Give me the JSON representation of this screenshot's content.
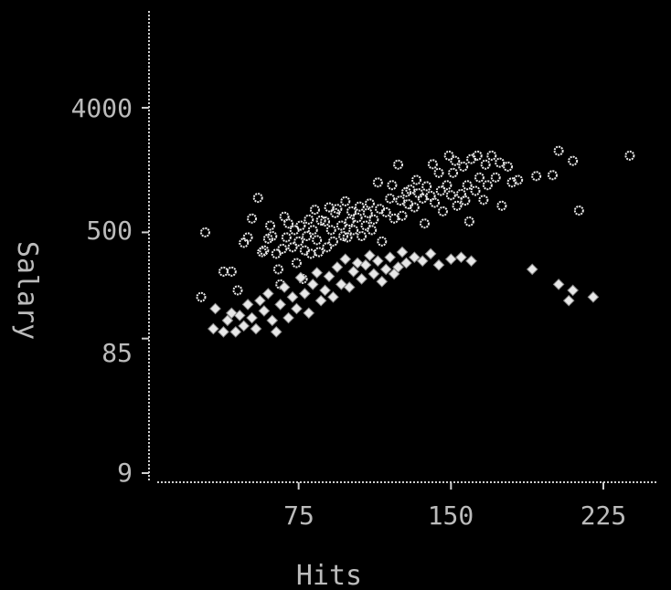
{
  "chart_data": {
    "type": "scatter",
    "title": "",
    "xlabel": "Hits",
    "ylabel": "Salary",
    "x_ticks": [
      "75",
      "150",
      "225"
    ],
    "x_tick_values": [
      75,
      150,
      225
    ],
    "y_ticks": [
      "4000",
      "500",
      "85",
      "9"
    ],
    "y_tick_values": [
      4000,
      500,
      85,
      9
    ],
    "y_scale": "log",
    "xlim": [
      0,
      250
    ],
    "ylim": [
      7,
      12000
    ],
    "grid": false,
    "colors": {
      "background": "#000000",
      "points": "#e8e8e8",
      "axis": "#cfcfcf",
      "text": "#bbbbbb"
    },
    "series": [
      {
        "marker": "open-circle",
        "points": [
          [
            29,
            500
          ],
          [
            27,
            170
          ],
          [
            38,
            260
          ],
          [
            42,
            260
          ],
          [
            45,
            190
          ],
          [
            48,
            420
          ],
          [
            50,
            460
          ],
          [
            52,
            630
          ],
          [
            55,
            890
          ],
          [
            57,
            360
          ],
          [
            58,
            370
          ],
          [
            60,
            450
          ],
          [
            61,
            560
          ],
          [
            62,
            470
          ],
          [
            64,
            350
          ],
          [
            65,
            270
          ],
          [
            66,
            210
          ],
          [
            67,
            380
          ],
          [
            68,
            650
          ],
          [
            69,
            460
          ],
          [
            70,
            580
          ],
          [
            72,
            390
          ],
          [
            73,
            520
          ],
          [
            74,
            300
          ],
          [
            75,
            430
          ],
          [
            76,
            560
          ],
          [
            77,
            230
          ],
          [
            78,
            370
          ],
          [
            79,
            470
          ],
          [
            80,
            620
          ],
          [
            81,
            350
          ],
          [
            82,
            520
          ],
          [
            83,
            730
          ],
          [
            84,
            440
          ],
          [
            85,
            360
          ],
          [
            86,
            610
          ],
          [
            88,
            600
          ],
          [
            89,
            390
          ],
          [
            90,
            760
          ],
          [
            91,
            520
          ],
          [
            92,
            430
          ],
          [
            93,
            690
          ],
          [
            94,
            740
          ],
          [
            96,
            560
          ],
          [
            97,
            470
          ],
          [
            98,
            840
          ],
          [
            99,
            460
          ],
          [
            100,
            600
          ],
          [
            101,
            710
          ],
          [
            102,
            520
          ],
          [
            104,
            640
          ],
          [
            105,
            770
          ],
          [
            106,
            470
          ],
          [
            108,
            560
          ],
          [
            109,
            690
          ],
          [
            110,
            810
          ],
          [
            111,
            520
          ],
          [
            112,
            620
          ],
          [
            114,
            1150
          ],
          [
            115,
            740
          ],
          [
            116,
            430
          ],
          [
            118,
            700
          ],
          [
            120,
            880
          ],
          [
            121,
            1100
          ],
          [
            122,
            630
          ],
          [
            124,
            1550
          ],
          [
            125,
            850
          ],
          [
            126,
            660
          ],
          [
            128,
            980
          ],
          [
            129,
            800
          ],
          [
            130,
            1020
          ],
          [
            132,
            760
          ],
          [
            133,
            1200
          ],
          [
            134,
            960
          ],
          [
            136,
            880
          ],
          [
            137,
            580
          ],
          [
            138,
            1080
          ],
          [
            140,
            920
          ],
          [
            141,
            1560
          ],
          [
            142,
            820
          ],
          [
            144,
            1350
          ],
          [
            145,
            1000
          ],
          [
            146,
            710
          ],
          [
            148,
            1100
          ],
          [
            149,
            1800
          ],
          [
            150,
            930
          ],
          [
            151,
            1350
          ],
          [
            152,
            1650
          ],
          [
            153,
            780
          ],
          [
            155,
            950
          ],
          [
            156,
            1500
          ],
          [
            157,
            850
          ],
          [
            158,
            1100
          ],
          [
            159,
            600
          ],
          [
            160,
            1700
          ],
          [
            162,
            1000
          ],
          [
            163,
            1800
          ],
          [
            164,
            1250
          ],
          [
            166,
            860
          ],
          [
            167,
            1550
          ],
          [
            168,
            1100
          ],
          [
            170,
            1800
          ],
          [
            172,
            1250
          ],
          [
            174,
            1600
          ],
          [
            175,
            780
          ],
          [
            178,
            1500
          ],
          [
            180,
            1150
          ],
          [
            183,
            1200
          ],
          [
            192,
            1280
          ],
          [
            200,
            1300
          ],
          [
            203,
            1950
          ],
          [
            210,
            1650
          ],
          [
            213,
            720
          ],
          [
            238,
            1800
          ]
        ]
      },
      {
        "marker": "filled-diamond",
        "points": [
          [
            33,
            100
          ],
          [
            34,
            140
          ],
          [
            38,
            95
          ],
          [
            40,
            115
          ],
          [
            42,
            130
          ],
          [
            44,
            95
          ],
          [
            46,
            125
          ],
          [
            48,
            105
          ],
          [
            50,
            150
          ],
          [
            52,
            120
          ],
          [
            54,
            100
          ],
          [
            56,
            160
          ],
          [
            58,
            135
          ],
          [
            60,
            180
          ],
          [
            62,
            115
          ],
          [
            64,
            95
          ],
          [
            66,
            150
          ],
          [
            68,
            200
          ],
          [
            70,
            120
          ],
          [
            72,
            170
          ],
          [
            74,
            140
          ],
          [
            76,
            235
          ],
          [
            78,
            180
          ],
          [
            80,
            130
          ],
          [
            82,
            210
          ],
          [
            84,
            255
          ],
          [
            86,
            160
          ],
          [
            88,
            190
          ],
          [
            90,
            240
          ],
          [
            92,
            170
          ],
          [
            94,
            280
          ],
          [
            96,
            210
          ],
          [
            98,
            320
          ],
          [
            100,
            200
          ],
          [
            102,
            260
          ],
          [
            104,
            300
          ],
          [
            106,
            230
          ],
          [
            108,
            290
          ],
          [
            110,
            340
          ],
          [
            112,
            250
          ],
          [
            114,
            310
          ],
          [
            116,
            220
          ],
          [
            118,
            270
          ],
          [
            120,
            330
          ],
          [
            122,
            250
          ],
          [
            124,
            280
          ],
          [
            126,
            360
          ],
          [
            128,
            300
          ],
          [
            132,
            330
          ],
          [
            136,
            310
          ],
          [
            140,
            350
          ],
          [
            144,
            290
          ],
          [
            150,
            320
          ],
          [
            155,
            330
          ],
          [
            160,
            310
          ],
          [
            190,
            270
          ],
          [
            203,
            210
          ],
          [
            208,
            160
          ],
          [
            210,
            190
          ],
          [
            220,
            170
          ]
        ]
      }
    ]
  }
}
